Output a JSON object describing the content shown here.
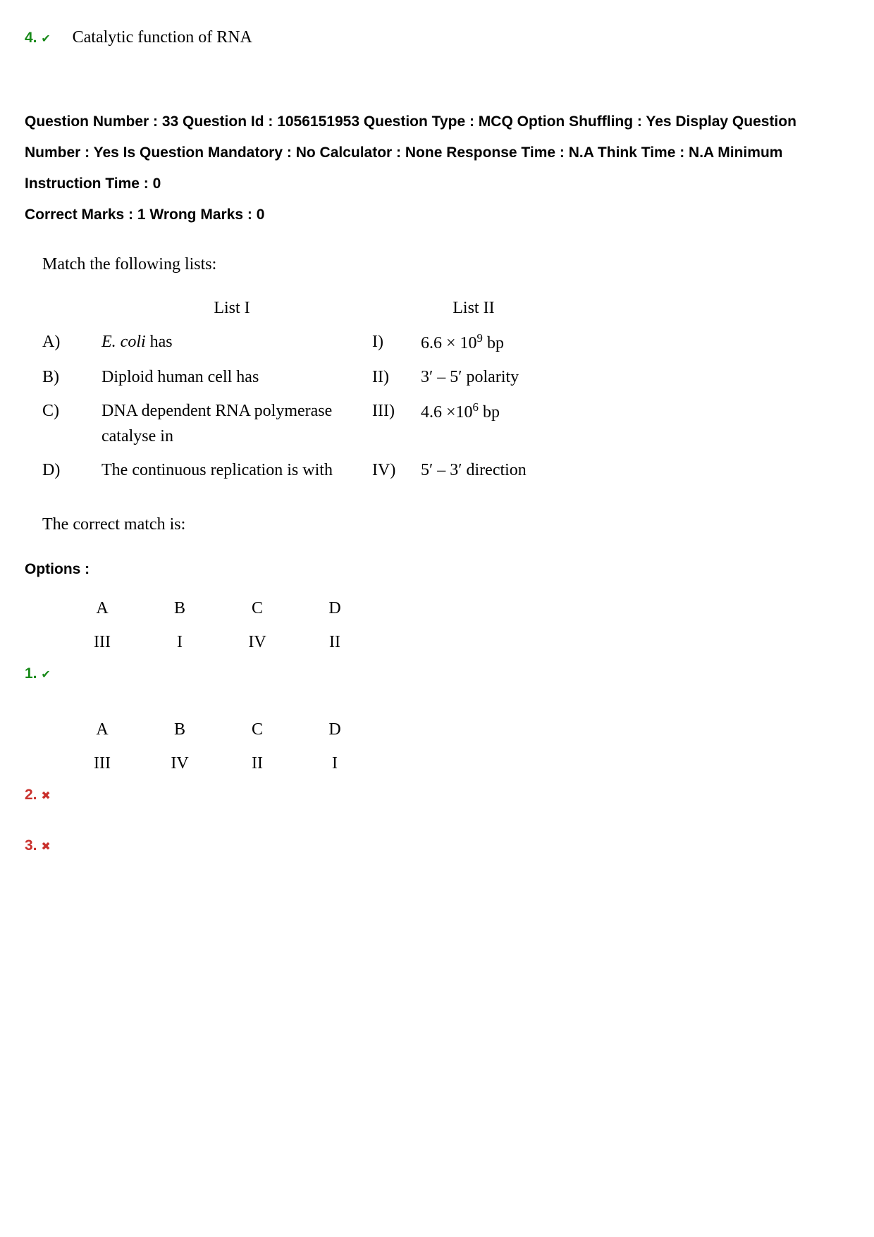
{
  "colors": {
    "correct": "#198a1a",
    "wrong": "#c9302c",
    "text": "#000000",
    "bg": "#ffffff"
  },
  "prev_option": {
    "number": "4.",
    "text": "Catalytic function of RNA",
    "status": "correct"
  },
  "meta": {
    "line1": "Question Number : 33 Question Id : 1056151953 Question Type : MCQ Option Shuffling : Yes Display Question Number : Yes Is Question Mandatory : No Calculator : None Response Time : N.A Think Time : N.A Minimum Instruction Time : 0",
    "marks": "Correct Marks : 1 Wrong Marks : 0"
  },
  "question": {
    "stem": "Match the following lists:",
    "list1_header": "List I",
    "list2_header": "List II",
    "rows": [
      {
        "l1_label": "A)",
        "l1_text_html": "<span class='ital'>E. coli</span> has",
        "l2_label": "I)",
        "l2_text_html": "6.6 × 10<sup>9</sup> bp"
      },
      {
        "l1_label": "B)",
        "l1_text_html": "Diploid human cell has",
        "l2_label": "II)",
        "l2_text_html": "3′ – 5′ polarity"
      },
      {
        "l1_label": "C)",
        "l1_text_html": "DNA dependent RNA polymerase catalyse in",
        "l2_label": "III)",
        "l2_text_html": "4.6 ×10<sup>6</sup> bp"
      },
      {
        "l1_label": "D)",
        "l1_text_html": "The continuous replication is with",
        "l2_label": "IV)",
        "l2_text_html": "5′ – 3′ direction"
      }
    ],
    "tail": "The correct match is:"
  },
  "options_label": "Options :",
  "option_headers": [
    "A",
    "B",
    "C",
    "D"
  ],
  "options": [
    {
      "num": "1.",
      "status": "correct",
      "values": [
        "III",
        "I",
        "IV",
        "II"
      ]
    },
    {
      "num": "2.",
      "status": "wrong",
      "values": [
        "III",
        "IV",
        "II",
        "I"
      ]
    },
    {
      "num": "3.",
      "status": "wrong",
      "values": null
    }
  ]
}
